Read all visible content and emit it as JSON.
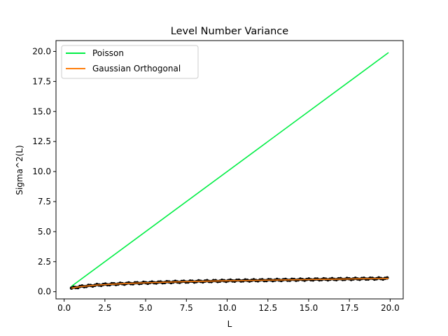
{
  "chart_data": {
    "type": "line",
    "title": "Level Number Variance",
    "xlabel": "L",
    "ylabel": "Sigma^2(L)",
    "xlim": [
      -0.5,
      20.8
    ],
    "ylim": [
      -0.6,
      20.9
    ],
    "xticks": [
      0.0,
      2.5,
      5.0,
      7.5,
      10.0,
      12.5,
      15.0,
      17.5,
      20.0
    ],
    "xtick_labels": [
      "0.0",
      "2.5",
      "5.0",
      "7.5",
      "10.0",
      "12.5",
      "15.0",
      "17.5",
      "20.0"
    ],
    "yticks": [
      0.0,
      2.5,
      5.0,
      7.5,
      10.0,
      12.5,
      15.0,
      17.5,
      20.0
    ],
    "ytick_labels": [
      "0.0",
      "2.5",
      "5.0",
      "7.5",
      "10.0",
      "12.5",
      "15.0",
      "17.5",
      "20.0"
    ],
    "grid": false,
    "legend_position": "top-left",
    "series": [
      {
        "name": "Poisson",
        "style": "line",
        "color": "#00ee44",
        "x": [
          0.45,
          19.9
        ],
        "y": [
          0.45,
          19.9
        ]
      },
      {
        "name": "Gaussian Orthogonal",
        "style": "line",
        "color": "#ff7f0e",
        "x": [
          0.45,
          1.0,
          2.0,
          3.0,
          4.0,
          5.0,
          6.0,
          7.0,
          8.0,
          9.0,
          10.0,
          11.0,
          12.0,
          13.0,
          14.0,
          15.0,
          16.0,
          17.0,
          18.0,
          19.0,
          19.9
        ],
        "y": [
          0.3,
          0.42,
          0.55,
          0.63,
          0.69,
          0.74,
          0.78,
          0.82,
          0.85,
          0.88,
          0.91,
          0.93,
          0.95,
          0.97,
          0.99,
          1.01,
          1.03,
          1.05,
          1.07,
          1.09,
          1.1
        ]
      },
      {
        "name": "",
        "style": "scatter",
        "color": "#000000",
        "x_start": 0.45,
        "x_end": 19.9,
        "x_step": 0.13,
        "y_model": "gaussian_orthogonal",
        "jitter": 0.05
      }
    ]
  }
}
